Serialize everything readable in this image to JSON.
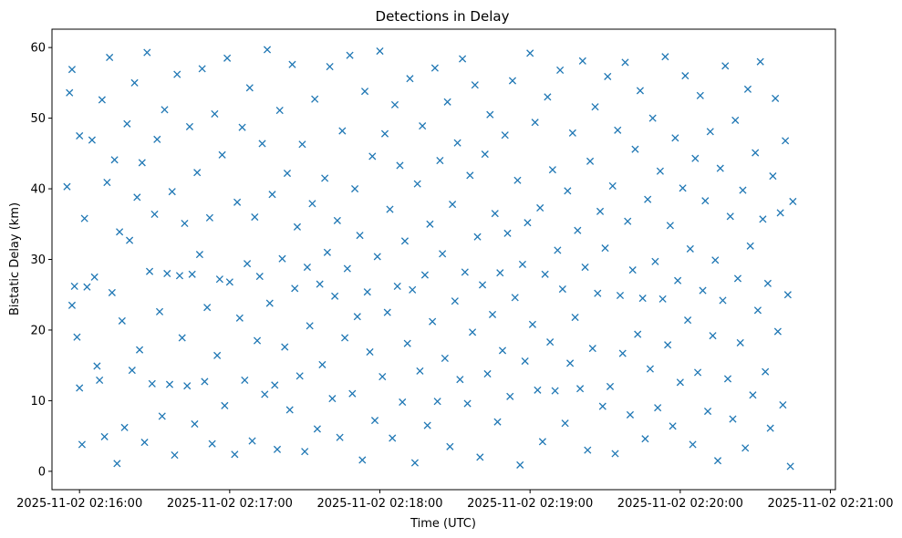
{
  "chart_data": {
    "type": "scatter",
    "title": "Detections in Delay",
    "xlabel": "Time (UTC)",
    "ylabel": "Bistatic Delay (km)",
    "marker": "x",
    "color": "#1f77b4",
    "grid": false,
    "xlim": [
      "2025-11-02 02:15:49",
      "2025-11-02 02:21:02"
    ],
    "ylim": [
      -2.6,
      62.6
    ],
    "xticks": [
      "2025-11-02 02:16:00",
      "2025-11-02 02:17:00",
      "2025-11-02 02:18:00",
      "2025-11-02 02:19:00",
      "2025-11-02 02:20:00",
      "2025-11-02 02:21:00"
    ],
    "yticks": [
      0,
      10,
      20,
      30,
      40,
      50,
      60
    ],
    "points": [
      [
        "02:15:55",
        40.3
      ],
      [
        "02:15:56",
        53.6
      ],
      [
        "02:15:57",
        56.9
      ],
      [
        "02:15:57",
        23.5
      ],
      [
        "02:15:58",
        26.2
      ],
      [
        "02:15:59",
        19.0
      ],
      [
        "02:16:00",
        47.5
      ],
      [
        "02:16:00",
        11.8
      ],
      [
        "02:16:01",
        3.8
      ],
      [
        "02:16:02",
        35.8
      ],
      [
        "02:16:03",
        26.1
      ],
      [
        "02:16:05",
        46.9
      ],
      [
        "02:16:06",
        27.5
      ],
      [
        "02:16:07",
        14.9
      ],
      [
        "02:16:08",
        12.9
      ],
      [
        "02:16:09",
        52.6
      ],
      [
        "02:16:10",
        4.9
      ],
      [
        "02:16:11",
        40.9
      ],
      [
        "02:16:12",
        58.6
      ],
      [
        "02:16:13",
        25.3
      ],
      [
        "02:16:14",
        44.1
      ],
      [
        "02:16:15",
        1.1
      ],
      [
        "02:16:16",
        33.9
      ],
      [
        "02:16:17",
        21.3
      ],
      [
        "02:16:18",
        6.2
      ],
      [
        "02:16:19",
        49.2
      ],
      [
        "02:16:20",
        32.7
      ],
      [
        "02:16:21",
        14.3
      ],
      [
        "02:16:22",
        55.0
      ],
      [
        "02:16:23",
        38.8
      ],
      [
        "02:16:24",
        17.2
      ],
      [
        "02:16:25",
        43.7
      ],
      [
        "02:16:26",
        4.1
      ],
      [
        "02:16:27",
        59.3
      ],
      [
        "02:16:28",
        28.3
      ],
      [
        "02:16:29",
        12.4
      ],
      [
        "02:16:30",
        36.4
      ],
      [
        "02:16:31",
        47.0
      ],
      [
        "02:16:32",
        22.6
      ],
      [
        "02:16:33",
        7.8
      ],
      [
        "02:16:34",
        51.2
      ],
      [
        "02:16:35",
        28.0
      ],
      [
        "02:16:36",
        12.3
      ],
      [
        "02:16:37",
        39.6
      ],
      [
        "02:16:38",
        2.3
      ],
      [
        "02:16:39",
        56.2
      ],
      [
        "02:16:40",
        27.7
      ],
      [
        "02:16:41",
        18.9
      ],
      [
        "02:16:42",
        35.1
      ],
      [
        "02:16:43",
        12.1
      ],
      [
        "02:16:44",
        48.8
      ],
      [
        "02:16:45",
        27.9
      ],
      [
        "02:16:46",
        6.7
      ],
      [
        "02:16:47",
        42.3
      ],
      [
        "02:16:48",
        30.7
      ],
      [
        "02:16:49",
        57.0
      ],
      [
        "02:16:50",
        12.7
      ],
      [
        "02:16:51",
        23.2
      ],
      [
        "02:16:52",
        35.9
      ],
      [
        "02:16:53",
        3.9
      ],
      [
        "02:16:54",
        50.6
      ],
      [
        "02:16:55",
        16.4
      ],
      [
        "02:16:56",
        27.2
      ],
      [
        "02:16:57",
        44.8
      ],
      [
        "02:16:58",
        9.3
      ],
      [
        "02:16:59",
        58.5
      ],
      [
        "02:17:00",
        26.8
      ],
      [
        "02:17:02",
        2.4
      ],
      [
        "02:17:03",
        38.1
      ],
      [
        "02:17:04",
        21.7
      ],
      [
        "02:17:05",
        48.7
      ],
      [
        "02:17:06",
        12.9
      ],
      [
        "02:17:07",
        29.4
      ],
      [
        "02:17:08",
        54.3
      ],
      [
        "02:17:09",
        4.3
      ],
      [
        "02:17:10",
        36.0
      ],
      [
        "02:17:11",
        18.5
      ],
      [
        "02:17:12",
        27.6
      ],
      [
        "02:17:13",
        46.4
      ],
      [
        "02:17:14",
        10.9
      ],
      [
        "02:17:15",
        59.7
      ],
      [
        "02:17:16",
        23.8
      ],
      [
        "02:17:17",
        39.2
      ],
      [
        "02:17:18",
        12.2
      ],
      [
        "02:17:19",
        3.1
      ],
      [
        "02:17:20",
        51.1
      ],
      [
        "02:17:21",
        30.1
      ],
      [
        "02:17:22",
        17.6
      ],
      [
        "02:17:23",
        42.2
      ],
      [
        "02:17:24",
        8.7
      ],
      [
        "02:17:25",
        57.6
      ],
      [
        "02:17:26",
        25.9
      ],
      [
        "02:17:27",
        34.6
      ],
      [
        "02:17:28",
        13.5
      ],
      [
        "02:17:29",
        46.3
      ],
      [
        "02:17:30",
        2.8
      ],
      [
        "02:17:31",
        28.9
      ],
      [
        "02:17:32",
        20.6
      ],
      [
        "02:17:33",
        37.9
      ],
      [
        "02:17:34",
        52.7
      ],
      [
        "02:17:35",
        6.0
      ],
      [
        "02:17:36",
        26.5
      ],
      [
        "02:17:37",
        15.1
      ],
      [
        "02:17:38",
        41.5
      ],
      [
        "02:17:39",
        31.0
      ],
      [
        "02:17:40",
        57.3
      ],
      [
        "02:17:41",
        10.3
      ],
      [
        "02:17:42",
        24.8
      ],
      [
        "02:17:43",
        35.5
      ],
      [
        "02:17:44",
        4.8
      ],
      [
        "02:17:45",
        48.2
      ],
      [
        "02:17:46",
        18.9
      ],
      [
        "02:17:47",
        28.7
      ],
      [
        "02:17:48",
        58.9
      ],
      [
        "02:17:49",
        11.0
      ],
      [
        "02:17:50",
        40.0
      ],
      [
        "02:17:51",
        21.9
      ],
      [
        "02:17:52",
        33.4
      ],
      [
        "02:17:53",
        1.6
      ],
      [
        "02:17:54",
        53.8
      ],
      [
        "02:17:55",
        25.4
      ],
      [
        "02:17:56",
        16.9
      ],
      [
        "02:17:57",
        44.6
      ],
      [
        "02:17:58",
        7.2
      ],
      [
        "02:17:59",
        30.4
      ],
      [
        "02:18:00",
        59.5
      ],
      [
        "02:18:01",
        13.4
      ],
      [
        "02:18:02",
        47.8
      ],
      [
        "02:18:03",
        22.5
      ],
      [
        "02:18:04",
        37.1
      ],
      [
        "02:18:05",
        4.7
      ],
      [
        "02:18:06",
        51.9
      ],
      [
        "02:18:07",
        26.2
      ],
      [
        "02:18:08",
        43.3
      ],
      [
        "02:18:09",
        9.8
      ],
      [
        "02:18:10",
        32.6
      ],
      [
        "02:18:11",
        18.1
      ],
      [
        "02:18:12",
        55.6
      ],
      [
        "02:18:13",
        25.7
      ],
      [
        "02:18:14",
        1.2
      ],
      [
        "02:18:15",
        40.7
      ],
      [
        "02:18:16",
        14.2
      ],
      [
        "02:18:17",
        48.9
      ],
      [
        "02:18:18",
        27.8
      ],
      [
        "02:18:19",
        6.5
      ],
      [
        "02:18:20",
        35.0
      ],
      [
        "02:18:21",
        21.2
      ],
      [
        "02:18:22",
        57.1
      ],
      [
        "02:18:23",
        9.9
      ],
      [
        "02:18:24",
        44.0
      ],
      [
        "02:18:25",
        30.8
      ],
      [
        "02:18:26",
        16.0
      ],
      [
        "02:18:27",
        52.3
      ],
      [
        "02:18:28",
        3.5
      ],
      [
        "02:18:29",
        37.8
      ],
      [
        "02:18:30",
        24.1
      ],
      [
        "02:18:31",
        46.5
      ],
      [
        "02:18:32",
        13.0
      ],
      [
        "02:18:33",
        58.4
      ],
      [
        "02:18:34",
        28.2
      ],
      [
        "02:18:35",
        9.6
      ],
      [
        "02:18:36",
        41.9
      ],
      [
        "02:18:37",
        19.7
      ],
      [
        "02:18:38",
        54.7
      ],
      [
        "02:18:39",
        33.2
      ],
      [
        "02:18:40",
        2.0
      ],
      [
        "02:18:41",
        26.4
      ],
      [
        "02:18:42",
        44.9
      ],
      [
        "02:18:43",
        13.8
      ],
      [
        "02:18:44",
        50.5
      ],
      [
        "02:18:45",
        22.2
      ],
      [
        "02:18:46",
        36.5
      ],
      [
        "02:18:47",
        7.0
      ],
      [
        "02:18:48",
        28.1
      ],
      [
        "02:18:49",
        17.1
      ],
      [
        "02:18:50",
        47.6
      ],
      [
        "02:18:51",
        33.7
      ],
      [
        "02:18:52",
        10.6
      ],
      [
        "02:18:53",
        55.3
      ],
      [
        "02:18:54",
        24.6
      ],
      [
        "02:18:55",
        41.2
      ],
      [
        "02:18:56",
        0.9
      ],
      [
        "02:18:57",
        29.3
      ],
      [
        "02:18:58",
        15.6
      ],
      [
        "02:18:59",
        35.2
      ],
      [
        "02:19:00",
        59.2
      ],
      [
        "02:19:01",
        20.8
      ],
      [
        "02:19:02",
        49.4
      ],
      [
        "02:19:03",
        11.5
      ],
      [
        "02:19:04",
        37.3
      ],
      [
        "02:19:05",
        4.2
      ],
      [
        "02:19:06",
        27.9
      ],
      [
        "02:19:07",
        53.0
      ],
      [
        "02:19:08",
        18.3
      ],
      [
        "02:19:09",
        42.7
      ],
      [
        "02:19:10",
        11.4
      ],
      [
        "02:19:11",
        31.3
      ],
      [
        "02:19:12",
        56.8
      ],
      [
        "02:19:13",
        25.8
      ],
      [
        "02:19:14",
        6.8
      ],
      [
        "02:19:15",
        39.7
      ],
      [
        "02:19:16",
        15.3
      ],
      [
        "02:19:17",
        47.9
      ],
      [
        "02:19:18",
        21.8
      ],
      [
        "02:19:19",
        34.1
      ],
      [
        "02:19:20",
        11.7
      ],
      [
        "02:19:21",
        58.1
      ],
      [
        "02:19:22",
        28.9
      ],
      [
        "02:19:23",
        3.0
      ],
      [
        "02:19:24",
        43.9
      ],
      [
        "02:19:25",
        17.4
      ],
      [
        "02:19:26",
        51.6
      ],
      [
        "02:19:27",
        25.2
      ],
      [
        "02:19:28",
        36.8
      ],
      [
        "02:19:29",
        9.2
      ],
      [
        "02:19:30",
        31.6
      ],
      [
        "02:19:31",
        55.9
      ],
      [
        "02:19:32",
        12.0
      ],
      [
        "02:19:33",
        40.4
      ],
      [
        "02:19:34",
        2.5
      ],
      [
        "02:19:35",
        48.3
      ],
      [
        "02:19:36",
        24.9
      ],
      [
        "02:19:37",
        16.7
      ],
      [
        "02:19:38",
        57.9
      ],
      [
        "02:19:39",
        35.4
      ],
      [
        "02:19:40",
        8.0
      ],
      [
        "02:19:41",
        28.5
      ],
      [
        "02:19:42",
        45.6
      ],
      [
        "02:19:43",
        19.4
      ],
      [
        "02:19:44",
        53.9
      ],
      [
        "02:19:45",
        24.5
      ],
      [
        "02:19:46",
        4.6
      ],
      [
        "02:19:47",
        38.5
      ],
      [
        "02:19:48",
        14.5
      ],
      [
        "02:19:49",
        50.0
      ],
      [
        "02:19:50",
        29.7
      ],
      [
        "02:19:51",
        9.0
      ],
      [
        "02:19:52",
        42.5
      ],
      [
        "02:19:53",
        24.4
      ],
      [
        "02:19:54",
        58.7
      ],
      [
        "02:19:55",
        17.9
      ],
      [
        "02:19:56",
        34.8
      ],
      [
        "02:19:57",
        6.4
      ],
      [
        "02:19:58",
        47.2
      ],
      [
        "02:19:59",
        27.0
      ],
      [
        "02:20:00",
        12.6
      ],
      [
        "02:20:01",
        40.1
      ],
      [
        "02:20:02",
        56.0
      ],
      [
        "02:20:03",
        21.4
      ],
      [
        "02:20:04",
        31.5
      ],
      [
        "02:20:05",
        3.8
      ],
      [
        "02:20:06",
        44.3
      ],
      [
        "02:20:07",
        14.0
      ],
      [
        "02:20:08",
        53.2
      ],
      [
        "02:20:09",
        25.6
      ],
      [
        "02:20:10",
        38.3
      ],
      [
        "02:20:11",
        8.5
      ],
      [
        "02:20:12",
        48.1
      ],
      [
        "02:20:13",
        19.2
      ],
      [
        "02:20:14",
        29.9
      ],
      [
        "02:20:15",
        1.5
      ],
      [
        "02:20:16",
        42.9
      ],
      [
        "02:20:17",
        24.2
      ],
      [
        "02:20:18",
        57.4
      ],
      [
        "02:20:19",
        13.1
      ],
      [
        "02:20:20",
        36.1
      ],
      [
        "02:20:21",
        7.4
      ],
      [
        "02:20:22",
        49.7
      ],
      [
        "02:20:23",
        27.3
      ],
      [
        "02:20:24",
        18.2
      ],
      [
        "02:20:25",
        39.8
      ],
      [
        "02:20:26",
        3.3
      ],
      [
        "02:20:27",
        54.1
      ],
      [
        "02:20:28",
        31.9
      ],
      [
        "02:20:29",
        10.8
      ],
      [
        "02:20:30",
        45.1
      ],
      [
        "02:20:31",
        22.8
      ],
      [
        "02:20:32",
        58.0
      ],
      [
        "02:20:33",
        35.7
      ],
      [
        "02:20:34",
        14.1
      ],
      [
        "02:20:35",
        26.6
      ],
      [
        "02:20:36",
        6.1
      ],
      [
        "02:20:37",
        41.8
      ],
      [
        "02:20:38",
        52.8
      ],
      [
        "02:20:39",
        19.8
      ],
      [
        "02:20:40",
        36.6
      ],
      [
        "02:20:41",
        9.4
      ],
      [
        "02:20:42",
        46.8
      ],
      [
        "02:20:43",
        25.0
      ],
      [
        "02:20:44",
        0.7
      ],
      [
        "02:20:45",
        38.2
      ]
    ]
  }
}
